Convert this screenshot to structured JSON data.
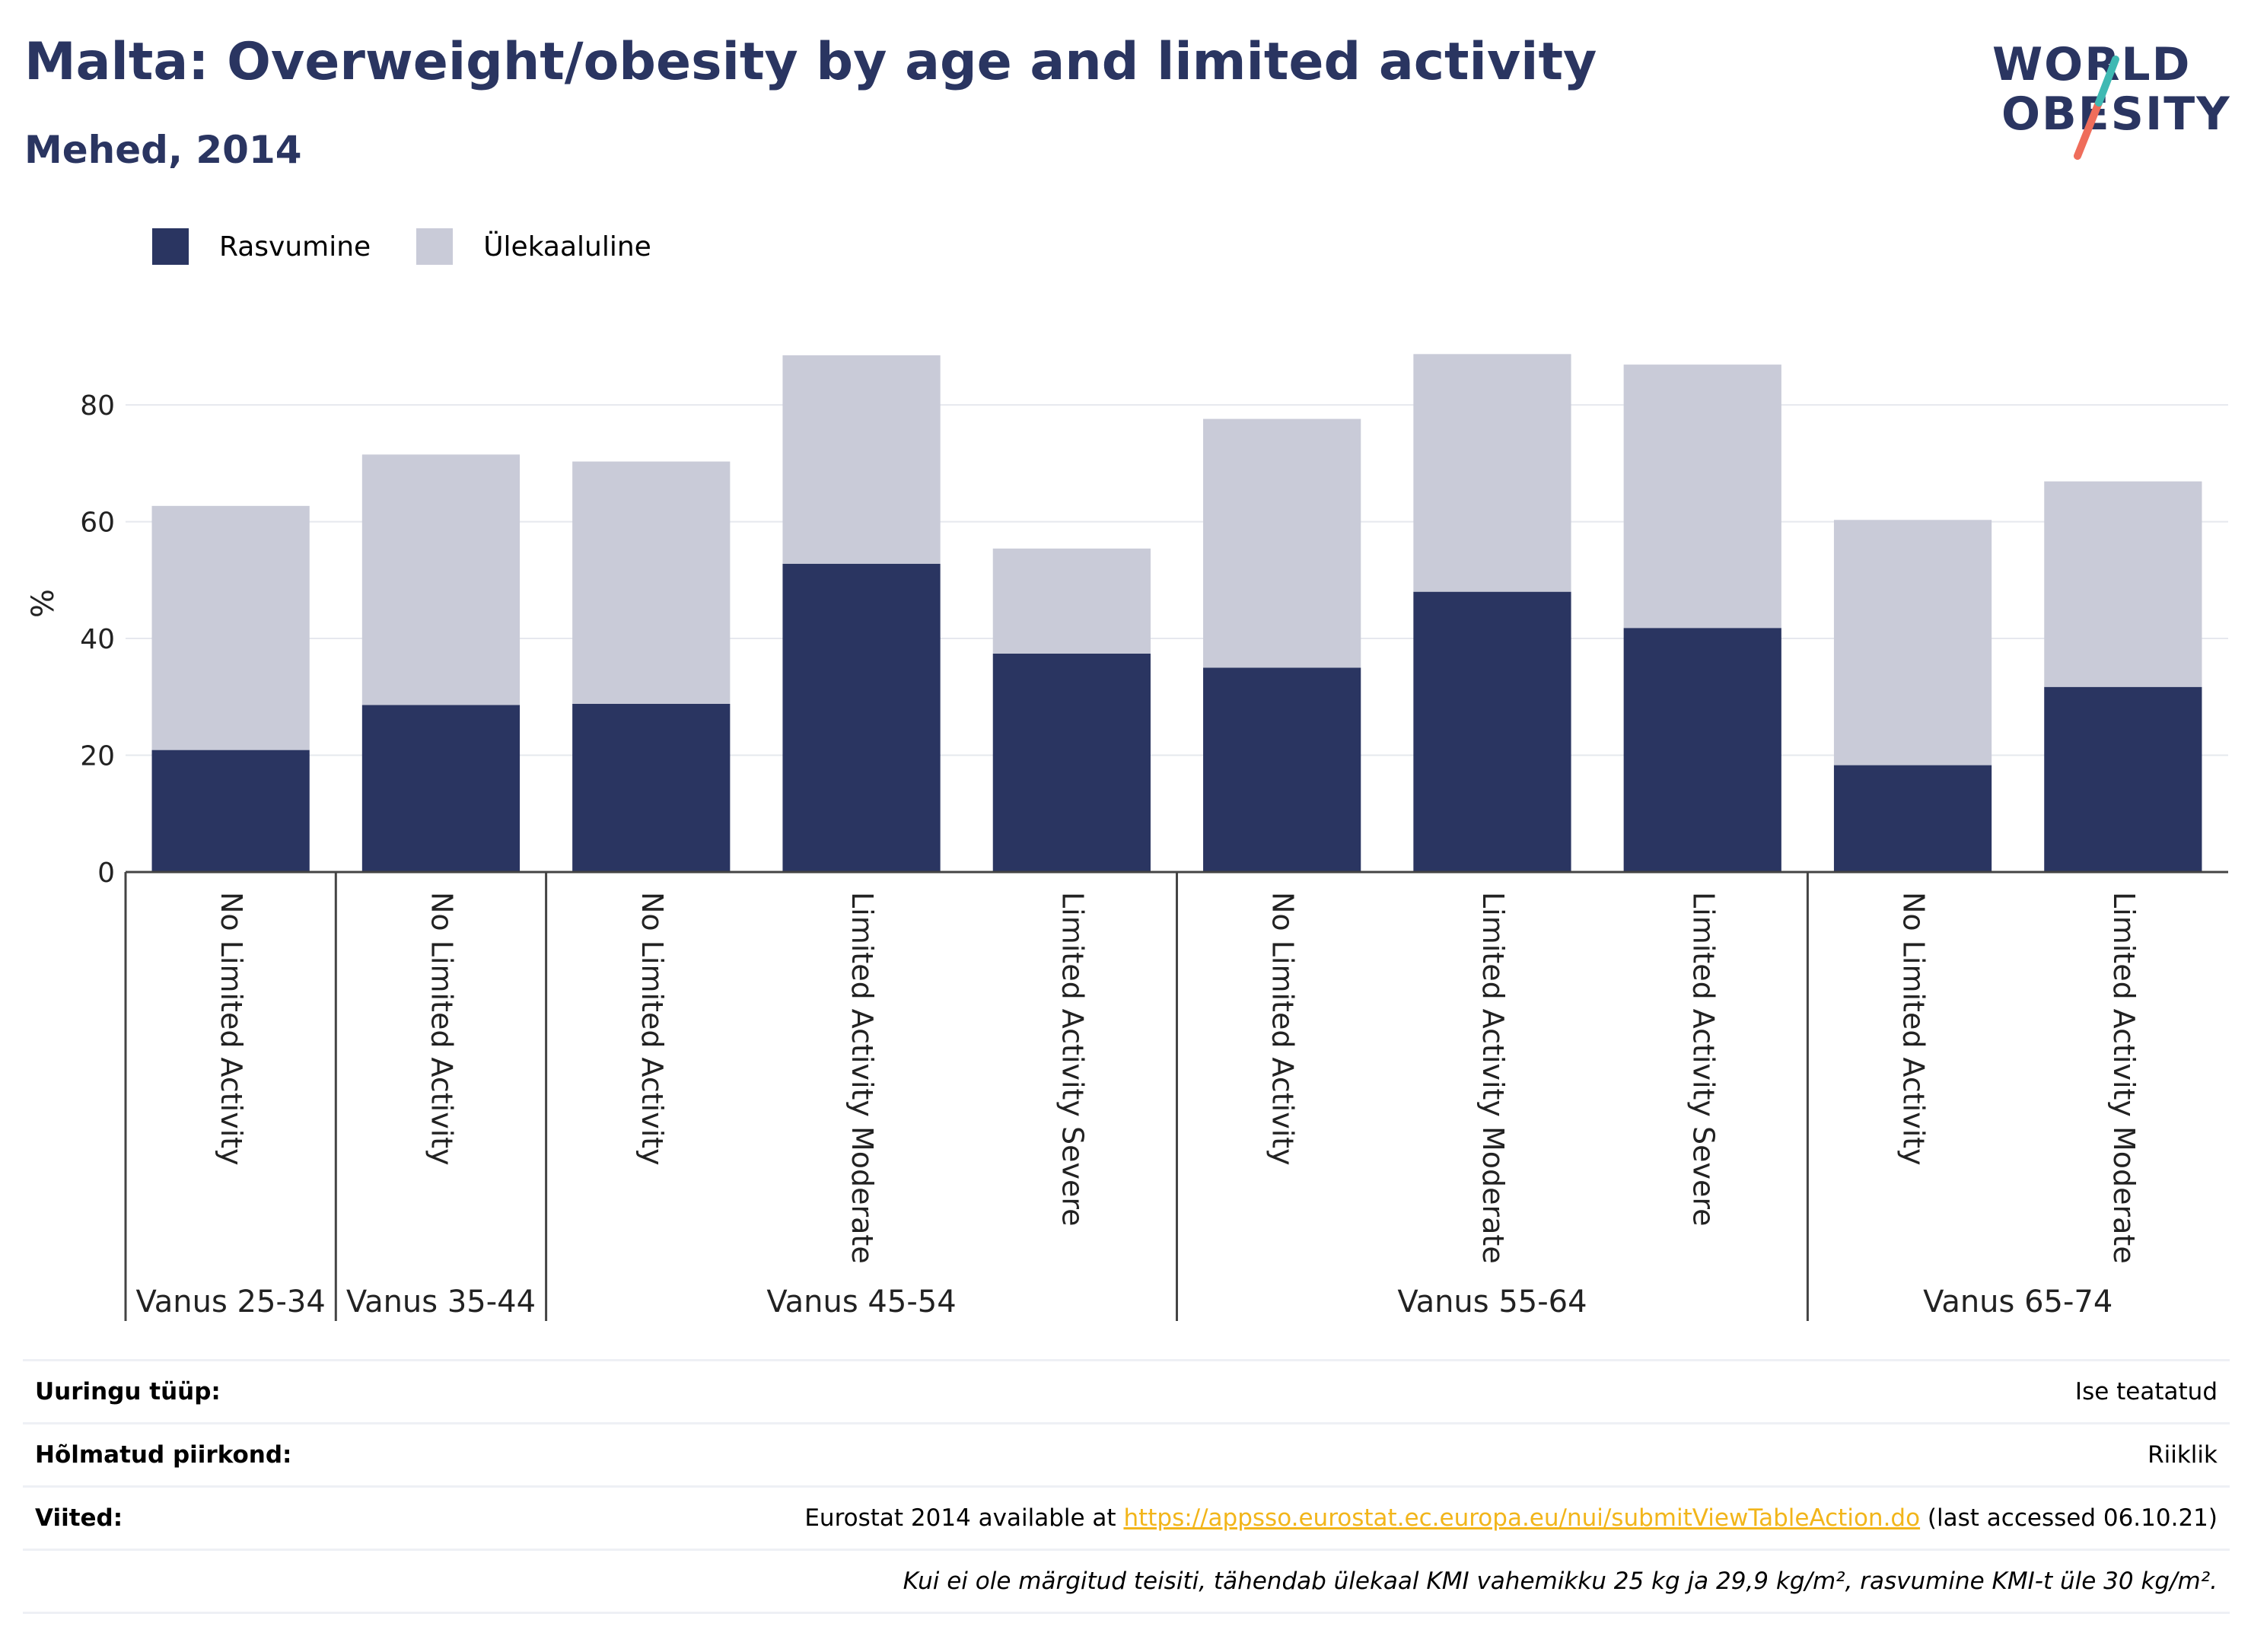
{
  "header": {
    "title": "Malta: Overweight/obesity by age and limited activity",
    "subtitle": "Mehed, 2014"
  },
  "logo": {
    "line1": "WORLD",
    "line2": "OBESITY"
  },
  "legend": [
    {
      "label": "Rasvumine",
      "color": "#2a3561"
    },
    {
      "label": "Ülekaaluline",
      "color": "#c9cbd8"
    }
  ],
  "chart_data": {
    "type": "bar",
    "stacked": true,
    "ylabel": "%",
    "ylim": [
      0,
      92
    ],
    "yticks": [
      0,
      20,
      40,
      60,
      80
    ],
    "grid": true,
    "legend_position": "top-left",
    "categories": [
      "No Limited Activity",
      "No Limited Activity",
      "No Limited Activity",
      "Limited Activity Moderate",
      "Limited Activity Severe",
      "No Limited Activity",
      "Limited Activity Moderate",
      "Limited Activity Severe",
      "No Limited Activity",
      "Limited Activity Moderate"
    ],
    "groups": [
      {
        "label": "Vanus 25-34",
        "count": 1
      },
      {
        "label": "Vanus 35-44",
        "count": 1
      },
      {
        "label": "Vanus 45-54",
        "count": 3
      },
      {
        "label": "Vanus 55-64",
        "count": 3
      },
      {
        "label": "Vanus 65-74",
        "count": 2
      }
    ],
    "series": [
      {
        "name": "Rasvumine",
        "color": "#2a3561",
        "values": [
          20.9,
          28.6,
          28.8,
          52.8,
          37.4,
          35.0,
          48.0,
          41.8,
          18.3,
          31.7
        ]
      },
      {
        "name": "Ülekaaluline",
        "color": "#c9cbd8",
        "values": [
          41.8,
          42.9,
          41.5,
          35.7,
          18.0,
          42.6,
          40.7,
          45.1,
          42.0,
          35.2
        ]
      }
    ]
  },
  "info": {
    "survey_type_label": "Uuringu tüüp:",
    "survey_type_value": "Ise teatatud",
    "region_label": "Hõlmatud piirkond:",
    "region_value": "Riiklik",
    "refs_label": "Viited:",
    "refs_prefix": "Eurostat 2014 available at ",
    "refs_link": "https://appsso.eurostat.ec.europa.eu/nui/submitViewTableAction.do",
    "refs_suffix": " (last accessed 06.10.21)",
    "note": "Kui ei ole märgitud teisiti, tähendab ülekaal KMI vahemikku 25 kg ja 29,9 kg/m², rasvumine KMI-t üle 30 kg/m²."
  }
}
